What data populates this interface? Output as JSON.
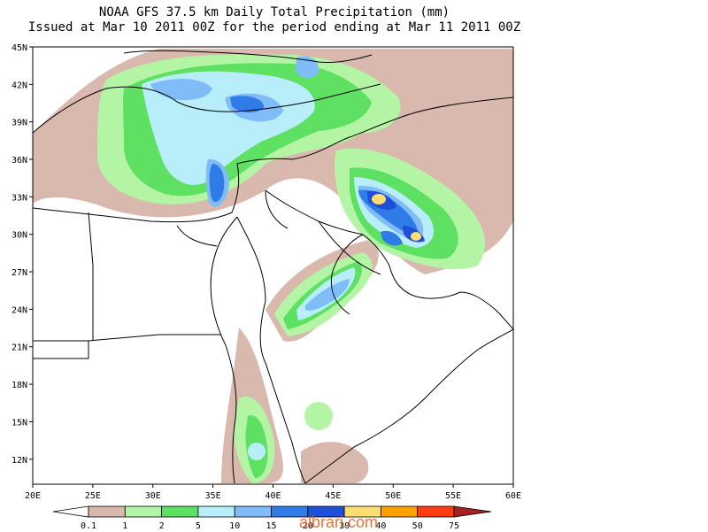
{
  "title": "NOAA GFS 37.5 km Daily Total Precipitation (mm)",
  "subtitle": "Issued at Mar 10 2011 00Z for the period ending at Mar 11 2011 00Z",
  "map": {
    "lat_range": [
      10,
      45
    ],
    "lon_range": [
      20,
      60
    ],
    "lat_ticks": [
      "12N",
      "15N",
      "18N",
      "21N",
      "24N",
      "27N",
      "30N",
      "33N",
      "36N",
      "39N",
      "42N",
      "45N"
    ],
    "lon_ticks": [
      "20E",
      "25E",
      "30E",
      "35E",
      "40E",
      "45E",
      "50E",
      "55E",
      "60E"
    ]
  },
  "legend": {
    "labels": [
      "0.1",
      "1",
      "2",
      "5",
      "10",
      "15",
      "20",
      "30",
      "40",
      "50",
      "75"
    ],
    "colors": [
      "#d9b9ae",
      "#b4f5a5",
      "#5ee063",
      "#b7eefa",
      "#7fbcf8",
      "#2f7be8",
      "#1d4fd8",
      "#ffde70",
      "#ffa000",
      "#ff3b10",
      "#a52020"
    ]
  },
  "watermark": "albrari.com"
}
